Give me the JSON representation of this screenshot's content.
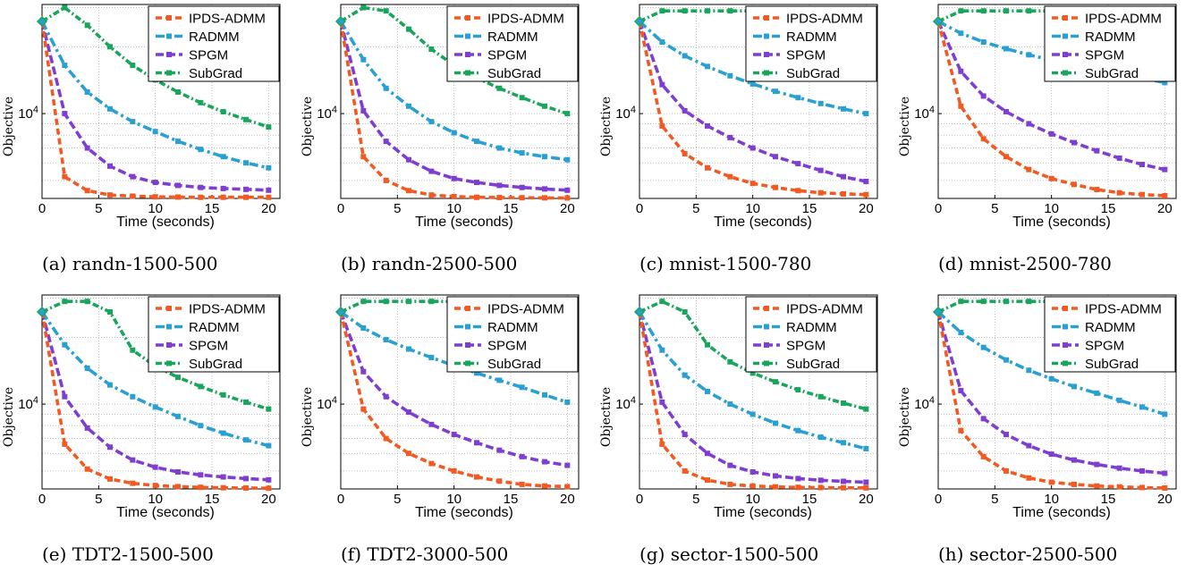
{
  "colors": {
    "IPDS-ADMM": "#f15a22",
    "RADMM": "#2a9fd1",
    "SPGM": "#7e3fd0",
    "SubGrad": "#1aa55c"
  },
  "chart_data": [
    {
      "type": "line",
      "caption": "(a) randn-1500-500",
      "xlabel": "Time (seconds)",
      "ylabel": "Objective",
      "yscale": "log",
      "xlim": [
        0,
        21
      ],
      "xticks": [
        "0",
        "5",
        "10",
        "15",
        "20"
      ],
      "ytick_label": "10^4",
      "legend": "top-right",
      "grid": true,
      "x": [
        0,
        2,
        4,
        6,
        8,
        10,
        12,
        14,
        16,
        18,
        20
      ],
      "series": [
        {
          "name": "IPDS-ADMM",
          "values": [
            26000,
            5200,
            4500,
            4300,
            4250,
            4220,
            4210,
            4200,
            4200,
            4200,
            4200
          ]
        },
        {
          "name": "RADMM",
          "values": [
            26000,
            16500,
            12500,
            10500,
            9200,
            8300,
            7500,
            6900,
            6400,
            6000,
            5700
          ]
        },
        {
          "name": "SPGM",
          "values": [
            26000,
            10000,
            7000,
            5800,
            5200,
            4900,
            4750,
            4650,
            4600,
            4560,
            4520
          ]
        },
        {
          "name": "SubGrad",
          "values": [
            26000,
            30000,
            25000,
            20000,
            16500,
            14200,
            12500,
            11200,
            10200,
            9400,
            8700
          ]
        }
      ]
    },
    {
      "type": "line",
      "caption": "(b) randn-2500-500",
      "xlabel": "Time (seconds)",
      "ylabel": "Objective",
      "yscale": "log",
      "xlim": [
        0,
        21
      ],
      "xticks": [
        "0",
        "5",
        "10",
        "15",
        "20"
      ],
      "ytick_label": "10^4",
      "legend": "top-right",
      "grid": true,
      "x": [
        0,
        2,
        4,
        6,
        8,
        10,
        12,
        14,
        16,
        18,
        20
      ],
      "series": [
        {
          "name": "IPDS-ADMM",
          "values": [
            26000,
            6400,
            5000,
            4500,
            4300,
            4230,
            4200,
            4190,
            4180,
            4175,
            4170
          ]
        },
        {
          "name": "RADMM",
          "values": [
            26000,
            17500,
            13000,
            10800,
            9200,
            8200,
            7500,
            7000,
            6650,
            6400,
            6200
          ]
        },
        {
          "name": "SPGM",
          "values": [
            26000,
            10300,
            7500,
            6200,
            5500,
            5100,
            4900,
            4750,
            4650,
            4580,
            4520
          ]
        },
        {
          "name": "SubGrad",
          "values": [
            26000,
            30000,
            29000,
            24000,
            19500,
            16500,
            14500,
            13000,
            11800,
            10800,
            10000
          ]
        }
      ]
    },
    {
      "type": "line",
      "caption": "(c) mnist-1500-780",
      "xlabel": "Time (seconds)",
      "ylabel": "Objective",
      "yscale": "log",
      "xlim": [
        0,
        21
      ],
      "xticks": [
        "0",
        "5",
        "10",
        "15",
        "20"
      ],
      "ytick_label": "10^4",
      "legend": "top-right",
      "grid": true,
      "x": [
        0,
        2,
        4,
        6,
        8,
        10,
        12,
        14,
        16,
        18,
        20
      ],
      "series": [
        {
          "name": "IPDS-ADMM",
          "values": [
            26000,
            8800,
            6600,
            5700,
            5200,
            4850,
            4650,
            4500,
            4400,
            4350,
            4320
          ]
        },
        {
          "name": "RADMM",
          "values": [
            26000,
            21000,
            18200,
            16300,
            14800,
            13600,
            12600,
            11800,
            11100,
            10500,
            10000
          ]
        },
        {
          "name": "SPGM",
          "values": [
            26000,
            13500,
            10300,
            8800,
            7800,
            7000,
            6400,
            5950,
            5550,
            5200,
            4950
          ]
        },
        {
          "name": "SubGrad",
          "values": [
            26000,
            29000,
            29000,
            29000,
            29000,
            29000,
            29000,
            29000,
            29000,
            29000,
            29000
          ]
        }
      ]
    },
    {
      "type": "line",
      "caption": "(d) mnist-2500-780",
      "xlabel": "Time (seconds)",
      "ylabel": "Objective",
      "yscale": "log",
      "xlim": [
        0,
        21
      ],
      "xticks": [
        "0",
        "5",
        "10",
        "15",
        "20"
      ],
      "ytick_label": "10^4",
      "legend": "top-right",
      "grid": true,
      "x": [
        0,
        2,
        4,
        6,
        8,
        10,
        12,
        14,
        16,
        18,
        20
      ],
      "series": [
        {
          "name": "IPDS-ADMM",
          "values": [
            26000,
            10800,
            7700,
            6400,
            5600,
            5100,
            4800,
            4550,
            4400,
            4320,
            4270
          ]
        },
        {
          "name": "RADMM",
          "values": [
            26000,
            23000,
            21000,
            19600,
            18400,
            17400,
            16500,
            15700,
            15000,
            14400,
            13800
          ]
        },
        {
          "name": "SPGM",
          "values": [
            26000,
            15500,
            12000,
            10200,
            9000,
            8100,
            7400,
            6800,
            6300,
            5900,
            5600
          ]
        },
        {
          "name": "SubGrad",
          "values": [
            26000,
            29000,
            29000,
            29000,
            29000,
            29000,
            29000,
            29000,
            29000,
            29000,
            29000
          ]
        }
      ]
    },
    {
      "type": "line",
      "caption": "(e) TDT2-1500-500",
      "xlabel": "Time (seconds)",
      "ylabel": "Objective",
      "yscale": "log",
      "xlim": [
        0,
        21
      ],
      "xticks": [
        "0",
        "5",
        "10",
        "15",
        "20"
      ],
      "ytick_label": "10^4",
      "legend": "top-right",
      "grid": true,
      "x": [
        0,
        2,
        4,
        6,
        8,
        10,
        12,
        14,
        16,
        18,
        20
      ],
      "series": [
        {
          "name": "IPDS-ADMM",
          "values": [
            26000,
            6600,
            5100,
            4600,
            4400,
            4300,
            4250,
            4220,
            4200,
            4190,
            4180
          ]
        },
        {
          "name": "RADMM",
          "values": [
            26000,
            18500,
            14500,
            12200,
            10800,
            9700,
            8800,
            8000,
            7400,
            6900,
            6500
          ]
        },
        {
          "name": "SPGM",
          "values": [
            26000,
            10800,
            7800,
            6400,
            5600,
            5200,
            4950,
            4800,
            4700,
            4620,
            4560
          ]
        },
        {
          "name": "SubGrad",
          "values": [
            26000,
            29000,
            29000,
            26000,
            17500,
            14800,
            13200,
            12000,
            11000,
            10200,
            9500
          ]
        }
      ]
    },
    {
      "type": "line",
      "caption": "(f) TDT2-3000-500",
      "xlabel": "Time (seconds)",
      "ylabel": "Objective",
      "yscale": "log",
      "xlim": [
        0,
        21
      ],
      "xticks": [
        "0",
        "5",
        "10",
        "15",
        "20"
      ],
      "ytick_label": "10^4",
      "legend": "top-right",
      "grid": true,
      "x": [
        0,
        2,
        4,
        6,
        8,
        10,
        12,
        14,
        16,
        18,
        20
      ],
      "series": [
        {
          "name": "IPDS-ADMM",
          "values": [
            26000,
            9500,
            7000,
            6000,
            5400,
            5000,
            4700,
            4500,
            4350,
            4280,
            4250
          ]
        },
        {
          "name": "RADMM",
          "values": [
            26000,
            22000,
            19500,
            17700,
            16200,
            14900,
            13800,
            12800,
            11900,
            11000,
            10200
          ]
        },
        {
          "name": "SPGM",
          "values": [
            26000,
            14000,
            10800,
            9200,
            8100,
            7300,
            6700,
            6200,
            5800,
            5500,
            5300
          ]
        },
        {
          "name": "SubGrad",
          "values": [
            26000,
            29000,
            29000,
            29000,
            29000,
            29000,
            29000,
            29000,
            29000,
            29000,
            29000
          ]
        }
      ]
    },
    {
      "type": "line",
      "caption": "(g) sector-1500-500",
      "xlabel": "Time (seconds)",
      "ylabel": "Objective",
      "yscale": "log",
      "xlim": [
        0,
        21
      ],
      "xticks": [
        "0",
        "5",
        "10",
        "15",
        "20"
      ],
      "ytick_label": "10^4",
      "legend": "top-right",
      "grid": true,
      "x": [
        0,
        2,
        4,
        6,
        8,
        10,
        12,
        14,
        16,
        18,
        20
      ],
      "series": [
        {
          "name": "IPDS-ADMM",
          "values": [
            26000,
            6600,
            5000,
            4550,
            4350,
            4280,
            4240,
            4220,
            4210,
            4200,
            4195
          ]
        },
        {
          "name": "RADMM",
          "values": [
            26000,
            17500,
            13500,
            11400,
            10000,
            9000,
            8200,
            7600,
            7100,
            6700,
            6300
          ]
        },
        {
          "name": "SPGM",
          "values": [
            26000,
            10200,
            7300,
            6000,
            5300,
            4950,
            4750,
            4620,
            4540,
            4490,
            4450
          ]
        },
        {
          "name": "SubGrad",
          "values": [
            26000,
            29000,
            26000,
            18500,
            15500,
            13800,
            12600,
            11600,
            10800,
            10100,
            9500
          ]
        }
      ]
    },
    {
      "type": "line",
      "caption": "(h) sector-2500-500",
      "xlabel": "Time (seconds)",
      "ylabel": "Objective",
      "yscale": "log",
      "xlim": [
        0,
        21
      ],
      "xticks": [
        "0",
        "5",
        "10",
        "15",
        "20"
      ],
      "ytick_label": "10^4",
      "legend": "top-right",
      "grid": true,
      "x": [
        0,
        2,
        4,
        6,
        8,
        10,
        12,
        14,
        16,
        18,
        20
      ],
      "series": [
        {
          "name": "IPDS-ADMM",
          "values": [
            26000,
            7600,
            5800,
            5000,
            4650,
            4450,
            4350,
            4280,
            4240,
            4210,
            4190
          ]
        },
        {
          "name": "RADMM",
          "values": [
            26000,
            21000,
            18000,
            15800,
            14200,
            13000,
            12000,
            11200,
            10400,
            9700,
            9000
          ]
        },
        {
          "name": "SPGM",
          "values": [
            26000,
            11500,
            8600,
            7300,
            6500,
            5950,
            5600,
            5350,
            5150,
            5000,
            4880
          ]
        },
        {
          "name": "SubGrad",
          "values": [
            26000,
            29000,
            29000,
            29000,
            29000,
            29000,
            29000,
            29000,
            29000,
            29000,
            29000
          ]
        }
      ]
    }
  ]
}
